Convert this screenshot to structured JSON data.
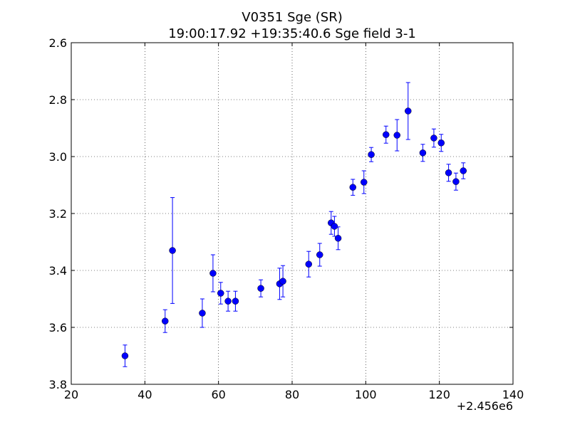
{
  "chart_data": {
    "type": "scatter",
    "title": "V0351 Sge (SR)",
    "subtitle": "19:00:17.92 +19:35:40.6 Sge field 3-1",
    "xlabel": "",
    "ylabel": "",
    "x_offset_label": "+2.456e6",
    "xlim": [
      20,
      140
    ],
    "ylim": [
      3.8,
      2.6
    ],
    "y_inverted": true,
    "grid": true,
    "x_ticks": [
      "20",
      "40",
      "60",
      "80",
      "100",
      "120",
      "140"
    ],
    "y_ticks": [
      "2.6",
      "2.8",
      "3.0",
      "3.2",
      "3.4",
      "3.6",
      "3.8"
    ],
    "marker_color": "#0000ff",
    "errorbar_color": "#0000ff",
    "series": [
      {
        "points": [
          {
            "x": 34.6,
            "y": 3.7,
            "err": 0.038
          },
          {
            "x": 45.5,
            "y": 3.578,
            "err": 0.04
          },
          {
            "x": 47.5,
            "y": 3.33,
            "err": 0.186
          },
          {
            "x": 55.6,
            "y": 3.55,
            "err": 0.05
          },
          {
            "x": 58.5,
            "y": 3.41,
            "err": 0.065
          },
          {
            "x": 60.6,
            "y": 3.48,
            "err": 0.038
          },
          {
            "x": 62.6,
            "y": 3.508,
            "err": 0.035
          },
          {
            "x": 64.6,
            "y": 3.508,
            "err": 0.035
          },
          {
            "x": 71.5,
            "y": 3.463,
            "err": 0.03
          },
          {
            "x": 76.6,
            "y": 3.447,
            "err": 0.055
          },
          {
            "x": 77.5,
            "y": 3.438,
            "err": 0.055
          },
          {
            "x": 84.5,
            "y": 3.378,
            "err": 0.045
          },
          {
            "x": 87.5,
            "y": 3.345,
            "err": 0.04
          },
          {
            "x": 90.6,
            "y": 3.233,
            "err": 0.04
          },
          {
            "x": 91.5,
            "y": 3.245,
            "err": 0.035
          },
          {
            "x": 92.5,
            "y": 3.287,
            "err": 0.04
          },
          {
            "x": 96.5,
            "y": 3.108,
            "err": 0.028
          },
          {
            "x": 99.5,
            "y": 3.09,
            "err": 0.04
          },
          {
            "x": 101.5,
            "y": 2.993,
            "err": 0.025
          },
          {
            "x": 105.5,
            "y": 2.923,
            "err": 0.03
          },
          {
            "x": 108.5,
            "y": 2.925,
            "err": 0.055
          },
          {
            "x": 111.5,
            "y": 2.84,
            "err": 0.1
          },
          {
            "x": 115.5,
            "y": 2.987,
            "err": 0.03
          },
          {
            "x": 118.5,
            "y": 2.935,
            "err": 0.032
          },
          {
            "x": 120.5,
            "y": 2.952,
            "err": 0.03
          },
          {
            "x": 122.5,
            "y": 3.057,
            "err": 0.03
          },
          {
            "x": 124.5,
            "y": 3.088,
            "err": 0.03
          },
          {
            "x": 126.5,
            "y": 3.05,
            "err": 0.028
          }
        ]
      }
    ]
  }
}
